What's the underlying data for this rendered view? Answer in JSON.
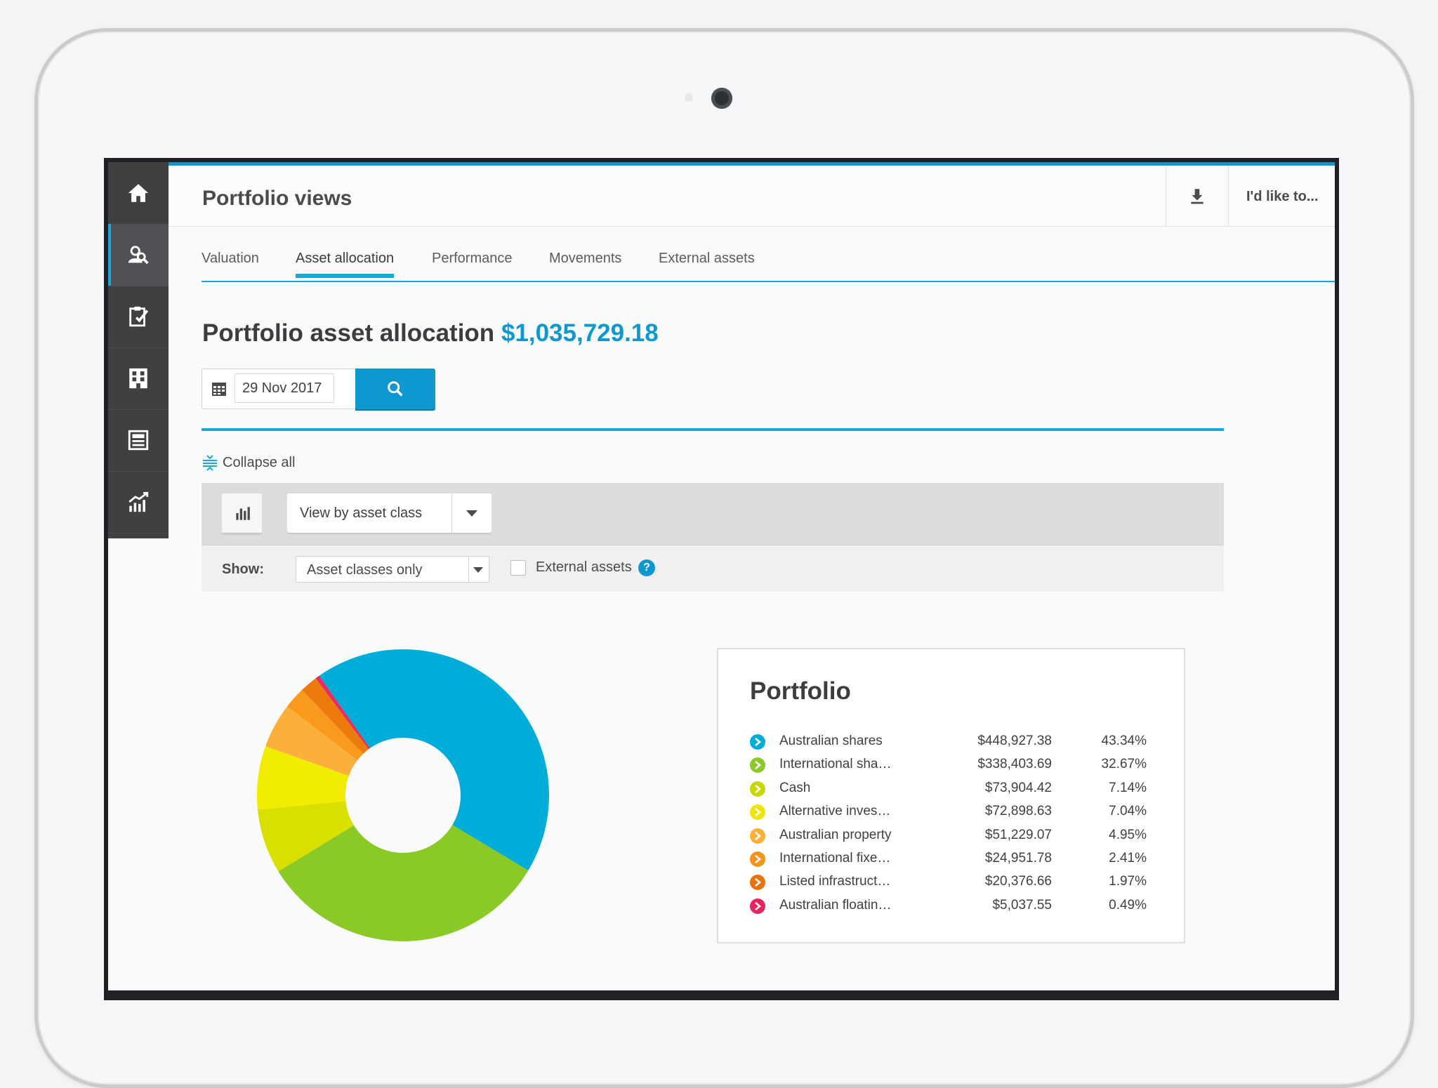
{
  "header": {
    "title": "Portfolio views",
    "like_label": "I'd like to..."
  },
  "sidebar": {
    "items": [
      {
        "name": "home",
        "icon": "home-icon"
      },
      {
        "name": "portfolio-search",
        "icon": "user-search-icon",
        "active": true
      },
      {
        "name": "tasks",
        "icon": "clipboard-check-icon"
      },
      {
        "name": "organisations",
        "icon": "building-icon"
      },
      {
        "name": "reports",
        "icon": "newspaper-icon"
      },
      {
        "name": "performance",
        "icon": "chart-trend-icon"
      }
    ]
  },
  "tabs": [
    {
      "label": "Valuation"
    },
    {
      "label": "Asset allocation",
      "active": true
    },
    {
      "label": "Performance"
    },
    {
      "label": "Movements"
    },
    {
      "label": "External assets"
    }
  ],
  "allocation": {
    "title": "Portfolio asset allocation",
    "total": "$1,035,729.18"
  },
  "date_picker": {
    "value": "29 Nov 2017"
  },
  "controls": {
    "collapse_all": "Collapse all",
    "view_select": "View by asset class",
    "show_label": "Show:",
    "show_select": "Asset classes only",
    "external_assets_label": "External assets",
    "help": "?"
  },
  "legend": {
    "title": "Portfolio",
    "rows": [
      {
        "name": "Australian shares",
        "value": "$448,927.38",
        "pct": "43.34%",
        "color": "#00acd8"
      },
      {
        "name": "International sha…",
        "value": "$338,403.69",
        "pct": "32.67%",
        "color": "#8ac926"
      },
      {
        "name": "Cash",
        "value": "$73,904.42",
        "pct": "7.14%",
        "color": "#c9d600"
      },
      {
        "name": "Alternative inves…",
        "value": "$72,898.63",
        "pct": "7.04%",
        "color": "#eee600"
      },
      {
        "name": "Australian property",
        "value": "$51,229.07",
        "pct": "4.95%",
        "color": "#fbb03b"
      },
      {
        "name": "International fixe…",
        "value": "$24,951.78",
        "pct": "2.41%",
        "color": "#f7941d"
      },
      {
        "name": "Listed infrastruct…",
        "value": "$20,376.66",
        "pct": "1.97%",
        "color": "#e8730c"
      },
      {
        "name": "Australian floatin…",
        "value": "$5,037.55",
        "pct": "0.49%",
        "color": "#e8245f"
      }
    ]
  },
  "chart_data": {
    "type": "pie",
    "categories": [
      "Australian shares",
      "International sha…",
      "Cash",
      "Alternative inves…",
      "Australian property",
      "International fixe…",
      "Listed infrastruct…",
      "Australian floatin…"
    ],
    "values": [
      43.34,
      32.67,
      7.14,
      7.04,
      4.95,
      2.41,
      1.97,
      0.49
    ],
    "colors": [
      "#00acd8",
      "#8ac926",
      "#d9e000",
      "#f2ec00",
      "#fcb03c",
      "#f99a1c",
      "#ec7a0c",
      "#e62d61"
    ]
  }
}
